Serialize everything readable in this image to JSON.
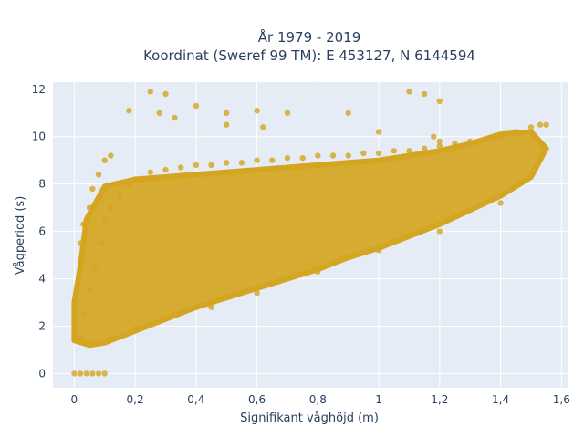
{
  "chart_data": {
    "type": "scatter",
    "title_lines": [
      "År 1979 - 2019",
      "Koordinat (Sweref 99 TM): E 453127, N 6144594"
    ],
    "xlabel": "Signifikant våghöjd (m)",
    "ylabel": "Vågperiod (s)",
    "xlim": [
      -0.07,
      1.62
    ],
    "ylim": [
      -0.6,
      12.3
    ],
    "xticks": [
      0,
      0.2,
      0.4,
      0.6,
      0.8,
      1,
      1.2,
      1.4,
      1.6
    ],
    "xtick_labels": [
      "0",
      "0,2",
      "0,4",
      "0,6",
      "0,8",
      "1",
      "1,2",
      "1,4",
      "1,6"
    ],
    "yticks": [
      0,
      2,
      4,
      6,
      8,
      10,
      12
    ],
    "ytick_labels": [
      "0",
      "2",
      "4",
      "6",
      "8",
      "10",
      "12"
    ],
    "grid": true,
    "series": [
      {
        "color": "#d4a520",
        "x": [
          0,
          0.02,
          0.04,
          0.06,
          0.08,
          0.1,
          0.02,
          0.03,
          0.05,
          0.07,
          0.09,
          0.1,
          0.12,
          0.15,
          0.18,
          0.2,
          0.25,
          0.3,
          0.35,
          0.4,
          0.45,
          0.5,
          0.55,
          0.6,
          0.65,
          0.7,
          0.75,
          0.8,
          0.85,
          0.9,
          0.95,
          1.0,
          1.05,
          1.1,
          1.15,
          1.2,
          1.25,
          1.3,
          1.35,
          1.4,
          1.45,
          1.5,
          1.53,
          1.55,
          0.03,
          0.05,
          0.08,
          0.12,
          0.2,
          0.3,
          0.45,
          0.6,
          0.8,
          1.0,
          1.2,
          1.4,
          0.25,
          0.3,
          0.4,
          0.5,
          0.6,
          0.7,
          0.9,
          1.1,
          1.15,
          1.2,
          0.18,
          0.28,
          0.33,
          0.5,
          0.62,
          1.0,
          1.18,
          1.2,
          0.02,
          0.03,
          0.05,
          0.06,
          0.08,
          0.1,
          0.12
        ],
        "y": [
          0,
          0,
          0,
          0,
          0,
          0,
          1.5,
          2.5,
          3.5,
          4.5,
          5.5,
          6.5,
          7.0,
          7.5,
          8.0,
          8.2,
          8.5,
          8.6,
          8.7,
          8.8,
          8.8,
          8.9,
          8.9,
          9.0,
          9.0,
          9.1,
          9.1,
          9.2,
          9.2,
          9.2,
          9.3,
          9.3,
          9.4,
          9.4,
          9.5,
          9.6,
          9.7,
          9.8,
          9.9,
          10.0,
          10.2,
          10.4,
          10.5,
          10.5,
          1.4,
          1.3,
          1.3,
          1.5,
          1.9,
          2.3,
          2.8,
          3.4,
          4.3,
          5.2,
          6.0,
          7.2,
          11.9,
          11.8,
          11.3,
          11.0,
          11.1,
          11.0,
          11.0,
          11.9,
          11.8,
          11.5,
          11.1,
          11.0,
          10.8,
          10.5,
          10.4,
          10.2,
          10.0,
          9.8,
          5.5,
          6.3,
          7.0,
          7.8,
          8.4,
          9.0,
          9.2
        ]
      }
    ]
  }
}
